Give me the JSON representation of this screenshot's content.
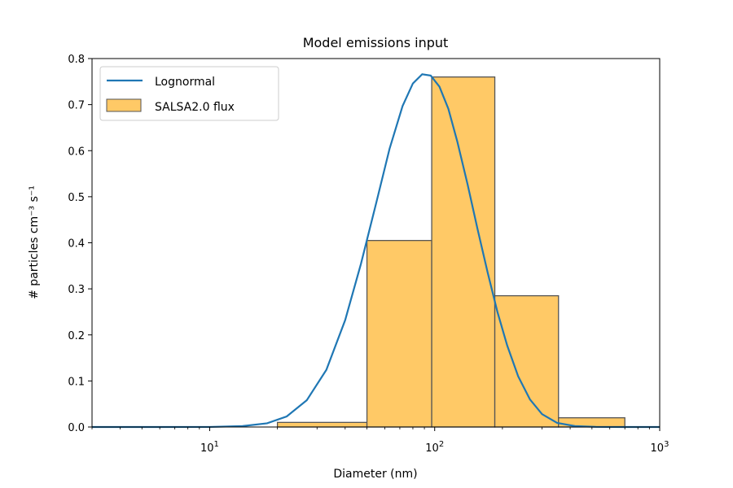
{
  "chart_data": {
    "type": "bar",
    "title": "Model emissions input",
    "xlabel": "Diameter (nm)",
    "ylabel": "# particles cm⁻³ s⁻¹",
    "xscale": "log",
    "xlim": [
      3,
      1000
    ],
    "ylim": [
      0,
      0.8
    ],
    "y_ticks": [
      "0.0",
      "0.1",
      "0.2",
      "0.3",
      "0.4",
      "0.5",
      "0.6",
      "0.7",
      "0.8"
    ],
    "x_ticks": [
      {
        "value": 10,
        "base": "10",
        "exp": "1"
      },
      {
        "value": 100,
        "base": "10",
        "exp": "2"
      },
      {
        "value": 1000,
        "base": "10",
        "exp": "3"
      }
    ],
    "legend_position": "top-left",
    "series": [
      {
        "name": "Lognormal",
        "kind": "line",
        "color": "#1f77b4",
        "x": [
          3,
          6,
          10,
          14,
          18,
          22,
          27,
          33,
          40,
          47,
          55,
          63,
          72,
          80,
          88,
          96,
          105,
          115,
          126,
          140,
          155,
          172,
          190,
          210,
          235,
          265,
          300,
          350,
          420,
          520,
          700,
          1000
        ],
        "y": [
          0.0,
          0.0,
          0.0001,
          0.002,
          0.008,
          0.023,
          0.058,
          0.124,
          0.232,
          0.354,
          0.487,
          0.604,
          0.697,
          0.746,
          0.766,
          0.763,
          0.739,
          0.691,
          0.62,
          0.527,
          0.43,
          0.335,
          0.25,
          0.177,
          0.11,
          0.06,
          0.028,
          0.009,
          0.002,
          0.0003,
          0.0,
          0.0
        ]
      },
      {
        "name": "SALSA2.0 flux",
        "kind": "bar",
        "color": "#ffc966",
        "edge_color": "#555555",
        "bins": [
          {
            "left": 20,
            "right": 50,
            "value": 0.01
          },
          {
            "left": 50,
            "right": 97,
            "value": 0.405
          },
          {
            "left": 97,
            "right": 185,
            "value": 0.76
          },
          {
            "left": 185,
            "right": 355,
            "value": 0.285
          },
          {
            "left": 355,
            "right": 700,
            "value": 0.02
          }
        ]
      }
    ]
  }
}
